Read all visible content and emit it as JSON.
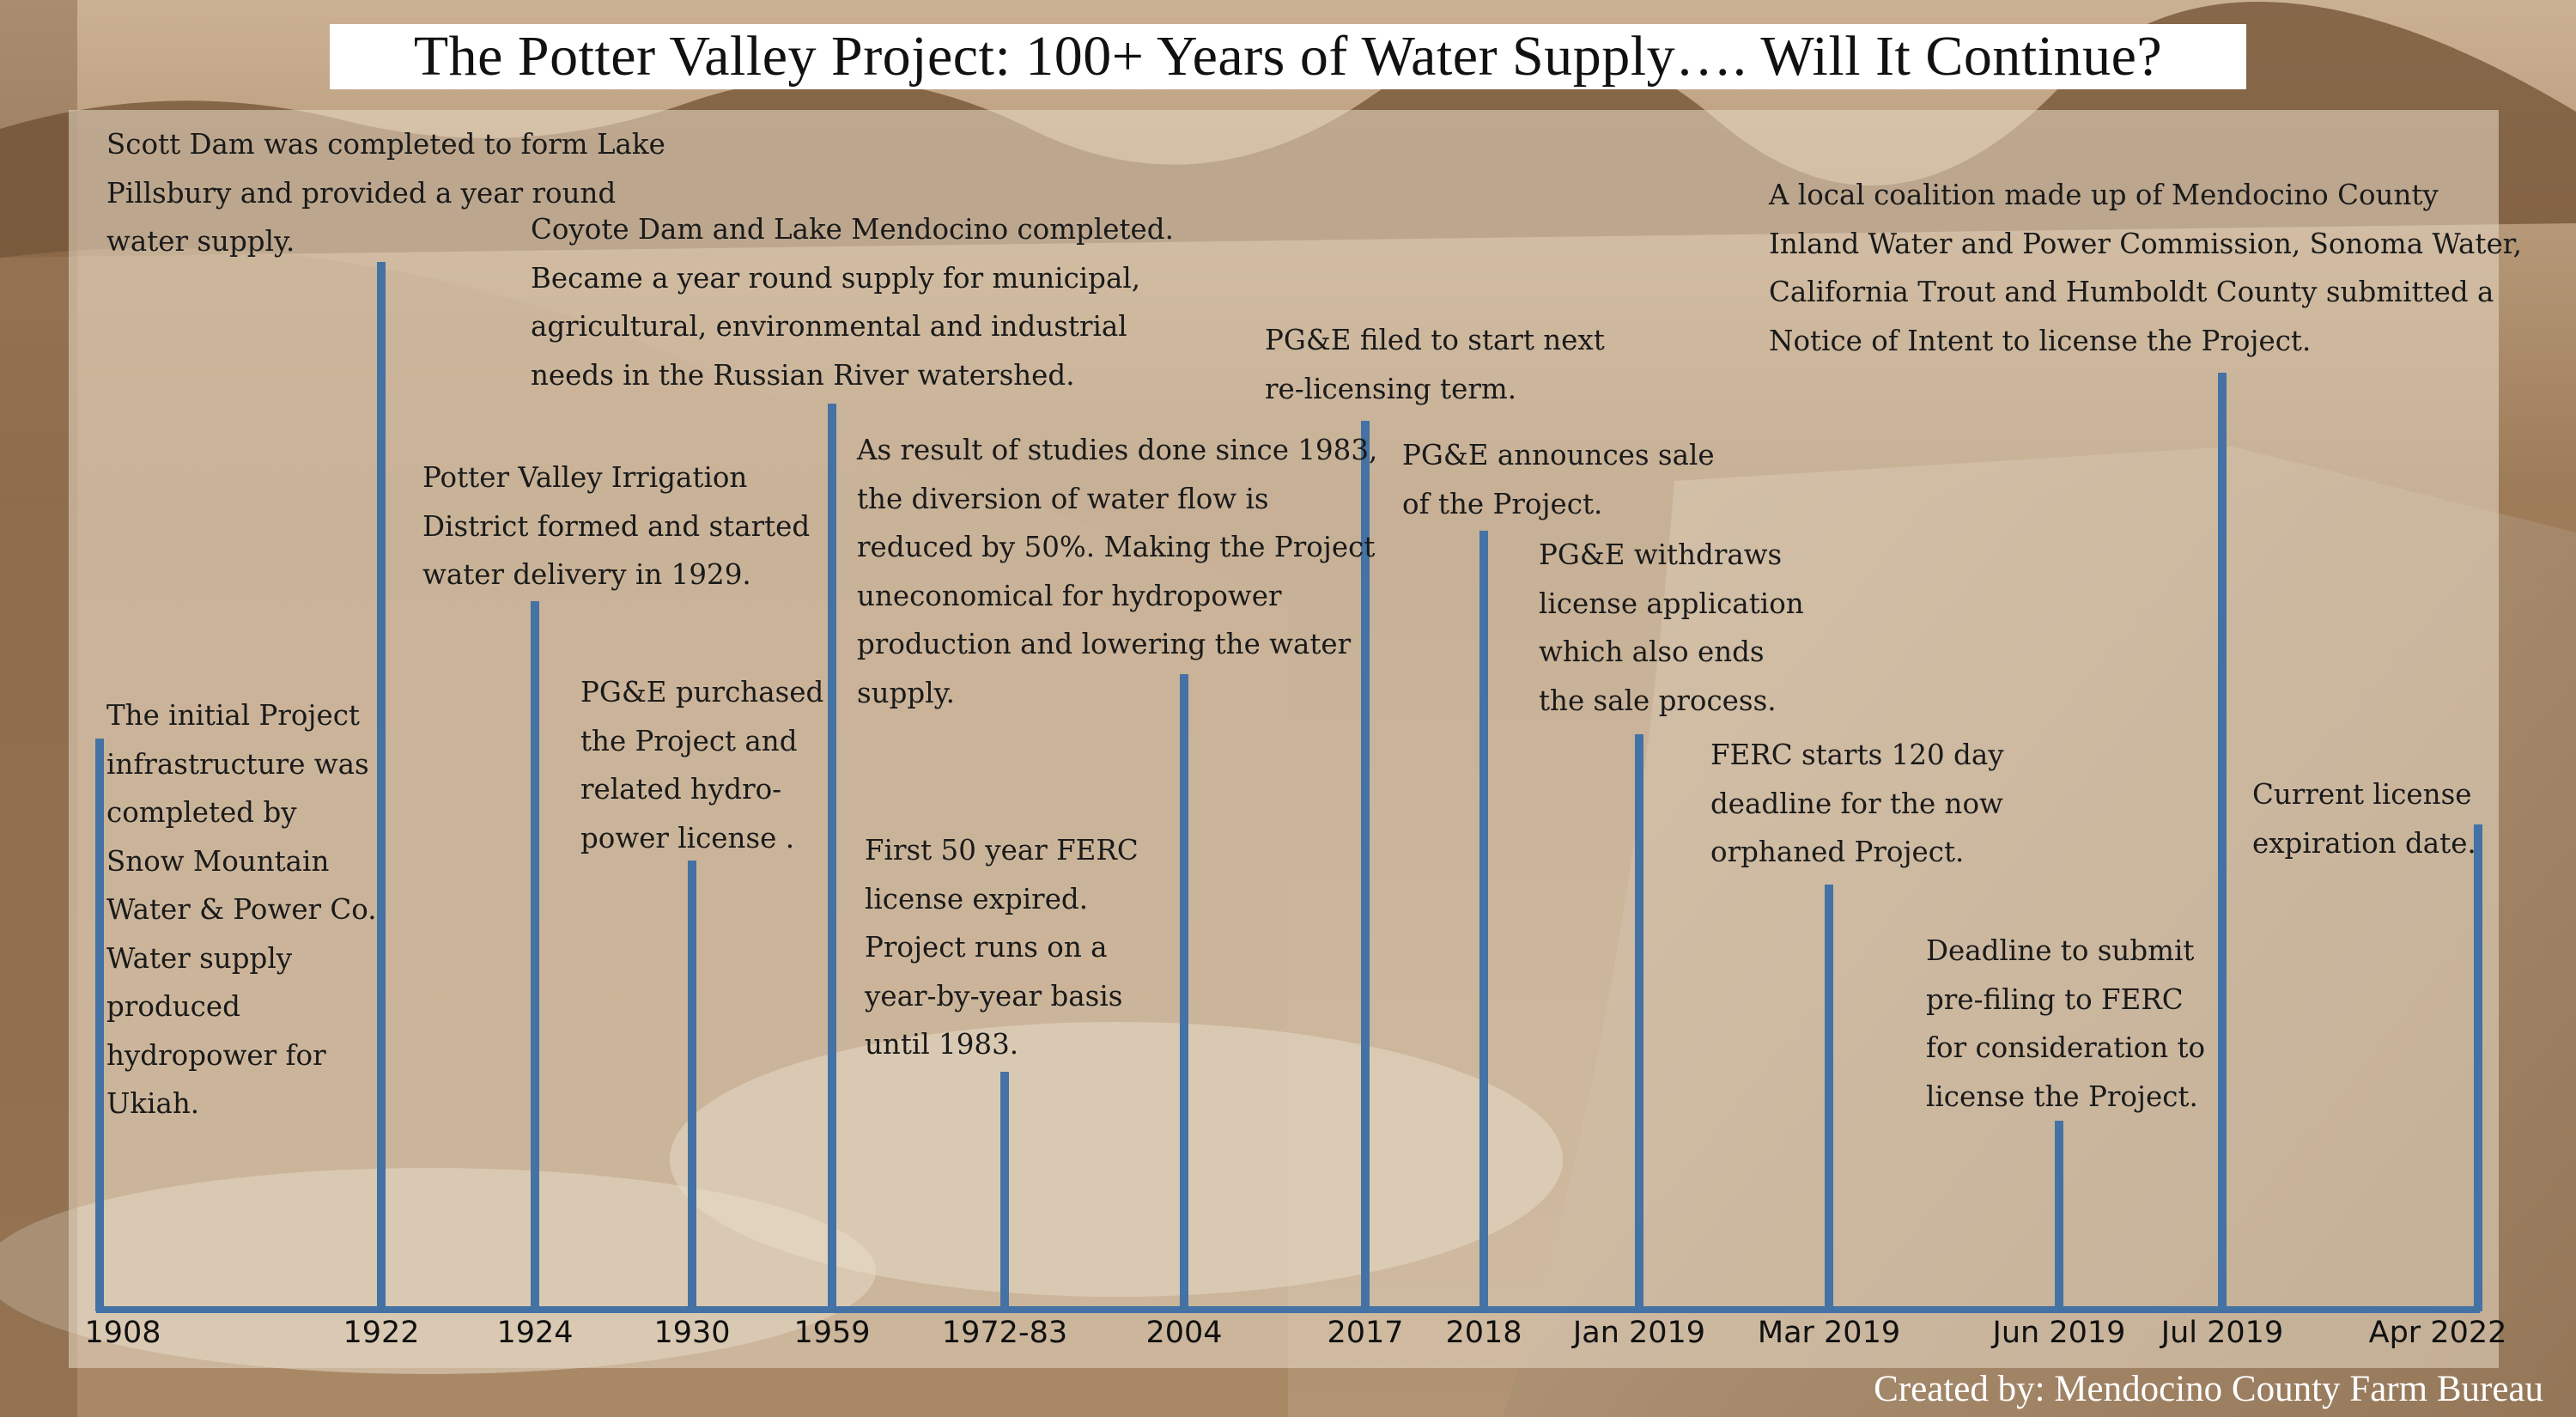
{
  "title": "The Potter Valley Project: 100+ Years of Water Supply…. Will It Continue?",
  "credit": "Created by: Mendocino County Farm Bureau",
  "colors": {
    "timeline": "#4472a4",
    "background": "#a68260",
    "panel": "#e6d7c3"
  },
  "events": [
    {
      "date": "1908",
      "text": "The initial Project\ninfrastructure was\ncompleted by\nSnow Mountain\nWater & Power Co.\nWater supply\nproduced\nhydropower for\nUkiah."
    },
    {
      "date": "1922",
      "text": "Scott Dam was completed to form Lake\nPillsbury and provided a year round\nwater supply."
    },
    {
      "date": "1924",
      "text": "Potter Valley Irrigation\nDistrict formed and started\nwater delivery in 1929."
    },
    {
      "date": "1930",
      "text": "PG&E purchased\nthe Project and\nrelated hydro-\npower license ."
    },
    {
      "date": "1959",
      "text": "Coyote Dam and Lake Mendocino completed.\nBecame a year round supply for municipal,\nagricultural, environmental and industrial\nneeds in the Russian River watershed."
    },
    {
      "date": "1972-83",
      "text": "First 50 year FERC\nlicense expired.\nProject runs on a\nyear-by-year basis\nuntil 1983."
    },
    {
      "date": "2004",
      "text": "As result of studies done since 1983,\nthe diversion of water flow is\nreduced by 50%. Making the Project\nuneconomical for hydropower\nproduction and lowering the water\nsupply."
    },
    {
      "date": "2017",
      "text": "PG&E filed to start next\nre-licensing term."
    },
    {
      "date": "2018",
      "text": "PG&E announces sale\nof the Project."
    },
    {
      "date": "Jan 2019",
      "text": "PG&E withdraws\nlicense application\nwhich also ends\nthe sale process."
    },
    {
      "date": "Mar 2019",
      "text": "FERC starts 120 day\ndeadline for the now\norphaned Project."
    },
    {
      "date": "Jun 2019",
      "text": "Deadline to submit\npre-filing to FERC\nfor consideration to\nlicense the Project."
    },
    {
      "date": "Jul 2019",
      "text": "A local coalition made up of Mendocino County\nInland Water and Power Commission, Sonoma Water,\nCalifornia Trout and Humboldt County submitted a\nNotice of Intent to license the Project."
    },
    {
      "date": "Apr 2022",
      "text": "Current license\nexpiration date."
    }
  ]
}
